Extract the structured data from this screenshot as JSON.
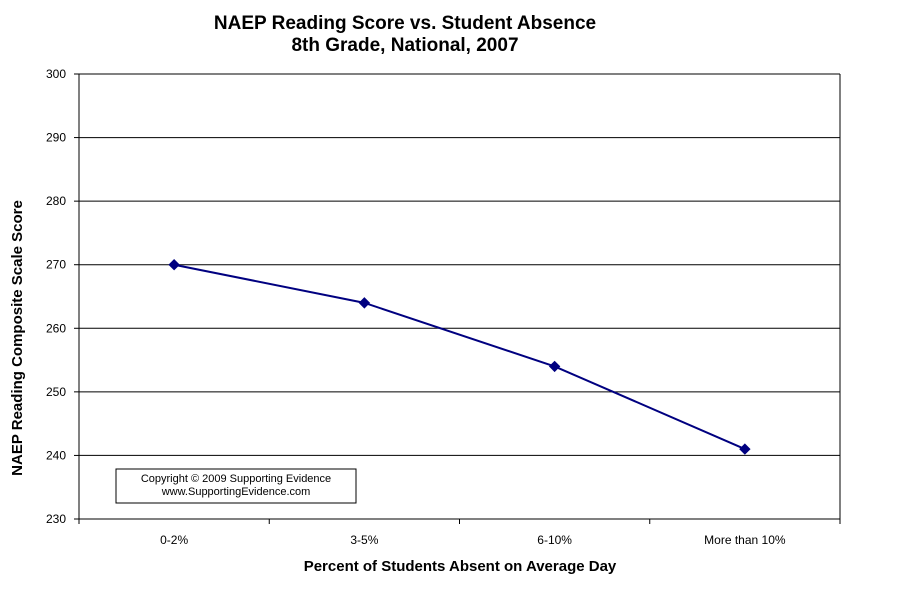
{
  "chart_data": {
    "type": "line",
    "title": "NAEP Reading Score vs. Student Absence",
    "subtitle": "8th Grade, National, 2007",
    "xlabel": "Percent of Students Absent on Average Day",
    "ylabel": "NAEP Reading Composite Scale Score",
    "categories": [
      "0-2%",
      "3-5%",
      "6-10%",
      "More than 10%"
    ],
    "series": [
      {
        "values": [
          270,
          264,
          254,
          241
        ]
      }
    ],
    "ylim": [
      230,
      300
    ],
    "yticks": [
      230,
      240,
      250,
      260,
      270,
      280,
      290,
      300
    ],
    "grid": true,
    "legend": "none",
    "line_color": "#000080",
    "annotation": {
      "line1": "Copyright © 2009 Supporting Evidence",
      "line2": "www.SupportingEvidence.com"
    }
  }
}
